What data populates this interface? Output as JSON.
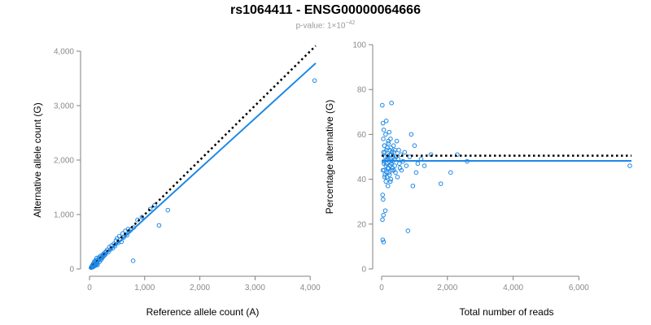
{
  "header": {
    "title": "rs1064411 - ENSG00000064666",
    "pvalue_prefix": "p-value: 1×10",
    "pvalue_exponent": "−42"
  },
  "colors": {
    "points": "#1e88e5",
    "fit_line": "#1e88e5",
    "expected_line": "#000000",
    "axis": "#808080",
    "tick_text": "#8a8a8a"
  },
  "chart_data": [
    {
      "type": "scatter",
      "xlabel": "Reference allele count (A)",
      "ylabel": "Alternative allele count (G)",
      "xlim": [
        0,
        4100
      ],
      "ylim": [
        0,
        4000
      ],
      "xticks": [
        0,
        1000,
        2000,
        3000,
        4000
      ],
      "yticks": [
        0,
        1000,
        2000,
        3000,
        4000
      ],
      "xtick_labels": [
        "0",
        "1,000",
        "2,000",
        "3,000",
        "4,000"
      ],
      "ytick_labels": [
        "0",
        "1,000",
        "2,000",
        "3,000",
        "4,000"
      ],
      "fit_line": {
        "x": [
          0,
          4100
        ],
        "y": [
          0,
          3780
        ]
      },
      "expected_line": {
        "x": [
          0,
          4100
        ],
        "y": [
          0,
          4100
        ]
      },
      "points": {
        "x": [
          30,
          40,
          45,
          50,
          55,
          60,
          65,
          70,
          75,
          80,
          85,
          90,
          95,
          100,
          105,
          110,
          115,
          120,
          125,
          130,
          135,
          140,
          145,
          150,
          160,
          170,
          180,
          190,
          200,
          210,
          220,
          230,
          240,
          250,
          260,
          270,
          280,
          290,
          300,
          320,
          340,
          360,
          380,
          400,
          420,
          440,
          460,
          480,
          500,
          520,
          540,
          560,
          580,
          600,
          620,
          650,
          680,
          700,
          720,
          750,
          790,
          800,
          870,
          950,
          1100,
          1180,
          1260,
          1420,
          4080
        ],
        "y": [
          25,
          35,
          55,
          30,
          70,
          45,
          90,
          40,
          60,
          110,
          50,
          140,
          70,
          85,
          120,
          65,
          160,
          95,
          80,
          200,
          110,
          130,
          75,
          170,
          150,
          210,
          130,
          180,
          240,
          170,
          220,
          200,
          260,
          230,
          280,
          250,
          300,
          270,
          320,
          350,
          310,
          400,
          360,
          430,
          380,
          460,
          420,
          520,
          560,
          480,
          600,
          540,
          500,
          650,
          580,
          700,
          620,
          730,
          690,
          720,
          150,
          760,
          900,
          950,
          1100,
          1170,
          800,
          1080,
          3460
        ]
      }
    },
    {
      "type": "scatter",
      "xlabel": "Total number of reads",
      "ylabel": "Percentage alternative (G)",
      "xlim": [
        0,
        7600
      ],
      "ylim": [
        0,
        100
      ],
      "xticks": [
        0,
        2000,
        4000,
        6000
      ],
      "yticks": [
        0,
        20,
        40,
        60,
        80,
        100
      ],
      "xtick_labels": [
        "0",
        "2,000",
        "4,000",
        "6,000"
      ],
      "ytick_labels": [
        "0",
        "20",
        "40",
        "60",
        "80",
        "100"
      ],
      "fit_line": {
        "x": [
          0,
          7600
        ],
        "y": [
          48.2,
          48.2
        ]
      },
      "expected_line": {
        "x": [
          0,
          7600
        ],
        "y": [
          50.5,
          50.5
        ]
      },
      "points": {
        "x": [
          20,
          25,
          30,
          35,
          40,
          45,
          50,
          55,
          60,
          65,
          70,
          75,
          80,
          90,
          100,
          110,
          120,
          130,
          140,
          150,
          160,
          170,
          180,
          190,
          200,
          210,
          220,
          230,
          240,
          250,
          260,
          270,
          280,
          290,
          300,
          320,
          340,
          360,
          380,
          400,
          420,
          440,
          460,
          480,
          500,
          520,
          540,
          560,
          580,
          600,
          650,
          700,
          750,
          800,
          850,
          900,
          950,
          1000,
          1050,
          1100,
          1200,
          1300,
          1500,
          1800,
          2100,
          2300,
          2600,
          7550,
          40,
          55,
          70,
          85,
          100,
          115,
          130,
          145,
          160,
          175,
          190,
          205,
          220,
          235,
          250,
          265,
          280,
          295,
          310,
          330,
          350,
          370,
          390,
          410
        ],
        "y": [
          73,
          22,
          33,
          13,
          65,
          31,
          58,
          24,
          12,
          62,
          48,
          44,
          55,
          41,
          52,
          26,
          60,
          39,
          66,
          47,
          43,
          54,
          50,
          37,
          57,
          45,
          49,
          61,
          42,
          53,
          46,
          58,
          40,
          51,
          74,
          44,
          48,
          55,
          52,
          46,
          43,
          50,
          57,
          41,
          49,
          53,
          47,
          45,
          51,
          44,
          48,
          52,
          46,
          17,
          50,
          60,
          37,
          55,
          43,
          47,
          49,
          46,
          51,
          38,
          43,
          51,
          48,
          46,
          44,
          52,
          47,
          55,
          42,
          50,
          46,
          53,
          41,
          49,
          45,
          56,
          43,
          48,
          51,
          39,
          54,
          47,
          52,
          45,
          50,
          44,
          49,
          53
        ]
      }
    }
  ]
}
